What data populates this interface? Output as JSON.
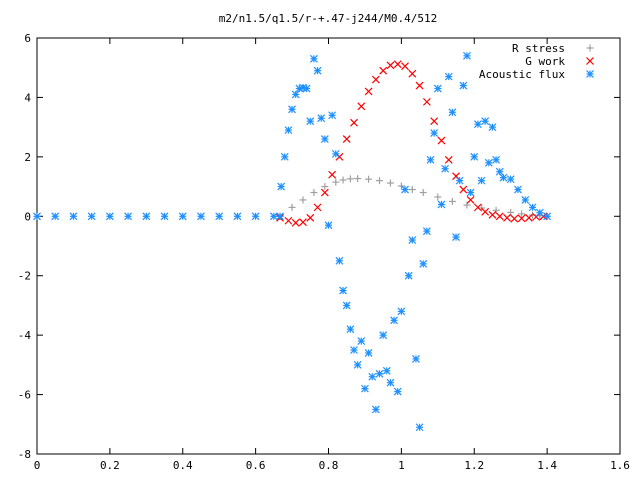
{
  "chart_data": {
    "type": "scatter",
    "title": "m2/n1.5/q1.5/r-+.47-j244/M0.4/512",
    "xlabel": "",
    "ylabel": "",
    "xlim": [
      0,
      1.6
    ],
    "ylim": [
      -8,
      6
    ],
    "xticks": [
      "0",
      "0.2",
      "0.4",
      "0.6",
      "0.8",
      "1",
      "1.2",
      "1.4",
      "1.6"
    ],
    "yticks": [
      "6",
      "4",
      "2",
      "0",
      "-2",
      "-4",
      "-6",
      "-8"
    ],
    "grid": false,
    "legend_position": "top-right",
    "series": [
      {
        "name": "R stress",
        "marker": "plus",
        "color": "#a0a0a0",
        "x": [
          0.667,
          0.7,
          0.73,
          0.76,
          0.79,
          0.82,
          0.84,
          0.86,
          0.88,
          0.91,
          0.94,
          0.97,
          1.0,
          1.03,
          1.06,
          1.1,
          1.14,
          1.18,
          1.22,
          1.26,
          1.3,
          1.33,
          1.36,
          1.38,
          1.4
        ],
        "y": [
          0.0,
          0.3,
          0.55,
          0.8,
          1.0,
          1.15,
          1.22,
          1.26,
          1.27,
          1.25,
          1.2,
          1.12,
          1.02,
          0.9,
          0.8,
          0.65,
          0.5,
          0.38,
          0.28,
          0.2,
          0.13,
          0.08,
          0.04,
          0.02,
          0.0
        ]
      },
      {
        "name": "G work",
        "marker": "cross",
        "color": "#ff0000",
        "x": [
          0.667,
          0.69,
          0.71,
          0.73,
          0.75,
          0.77,
          0.79,
          0.81,
          0.83,
          0.85,
          0.87,
          0.89,
          0.91,
          0.93,
          0.95,
          0.97,
          0.99,
          1.01,
          1.03,
          1.05,
          1.07,
          1.09,
          1.11,
          1.13,
          1.15,
          1.17,
          1.19,
          1.21,
          1.23,
          1.25,
          1.27,
          1.29,
          1.31,
          1.33,
          1.35,
          1.37,
          1.39
        ],
        "y": [
          -0.05,
          -0.15,
          -0.22,
          -0.2,
          -0.05,
          0.3,
          0.8,
          1.4,
          2.0,
          2.6,
          3.15,
          3.7,
          4.2,
          4.6,
          4.9,
          5.08,
          5.12,
          5.05,
          4.8,
          4.4,
          3.85,
          3.2,
          2.55,
          1.9,
          1.35,
          0.9,
          0.55,
          0.3,
          0.15,
          0.05,
          0.0,
          -0.05,
          -0.08,
          -0.07,
          -0.05,
          -0.02,
          0.0
        ]
      },
      {
        "name": "Acoustic flux",
        "marker": "star",
        "color": "#1e90ff",
        "x": [
          0.0,
          0.05,
          0.1,
          0.15,
          0.2,
          0.25,
          0.3,
          0.35,
          0.4,
          0.45,
          0.5,
          0.55,
          0.6,
          0.65,
          0.667,
          0.67,
          0.68,
          0.69,
          0.7,
          0.71,
          0.72,
          0.73,
          0.74,
          0.75,
          0.76,
          0.77,
          0.78,
          0.79,
          0.8,
          0.81,
          0.82,
          0.83,
          0.84,
          0.85,
          0.86,
          0.87,
          0.88,
          0.89,
          0.9,
          0.91,
          0.92,
          0.93,
          0.94,
          0.95,
          0.96,
          0.97,
          0.98,
          0.99,
          1.0,
          1.01,
          1.02,
          1.03,
          1.04,
          1.05,
          1.06,
          1.07,
          1.08,
          1.09,
          1.1,
          1.11,
          1.12,
          1.13,
          1.14,
          1.15,
          1.16,
          1.17,
          1.18,
          1.19,
          1.2,
          1.21,
          1.22,
          1.23,
          1.24,
          1.25,
          1.26,
          1.27,
          1.28,
          1.3,
          1.32,
          1.34,
          1.36,
          1.38,
          1.4
        ],
        "y": [
          0.0,
          0.0,
          0.0,
          0.0,
          0.0,
          0.0,
          0.0,
          0.0,
          0.0,
          0.0,
          0.0,
          0.0,
          0.0,
          0.0,
          0.0,
          1.0,
          2.0,
          2.9,
          3.6,
          4.1,
          4.3,
          4.33,
          4.3,
          3.2,
          5.3,
          4.9,
          3.3,
          2.6,
          -0.3,
          3.4,
          2.1,
          -1.5,
          -2.5,
          -3.0,
          -3.8,
          -4.5,
          -5.0,
          -4.2,
          -5.8,
          -4.6,
          -5.4,
          -6.5,
          -5.3,
          -4.0,
          -5.2,
          -5.6,
          -3.5,
          -5.9,
          -3.2,
          0.9,
          -2.0,
          -0.8,
          -4.8,
          -7.1,
          -1.6,
          -0.5,
          1.9,
          2.8,
          4.3,
          0.4,
          1.6,
          4.7,
          3.5,
          -0.7,
          1.2,
          4.4,
          5.4,
          0.8,
          2.0,
          3.1,
          1.2,
          3.2,
          1.8,
          3.0,
          1.9,
          1.5,
          1.3,
          1.25,
          0.9,
          0.55,
          0.3,
          0.12,
          0.0
        ]
      }
    ]
  }
}
